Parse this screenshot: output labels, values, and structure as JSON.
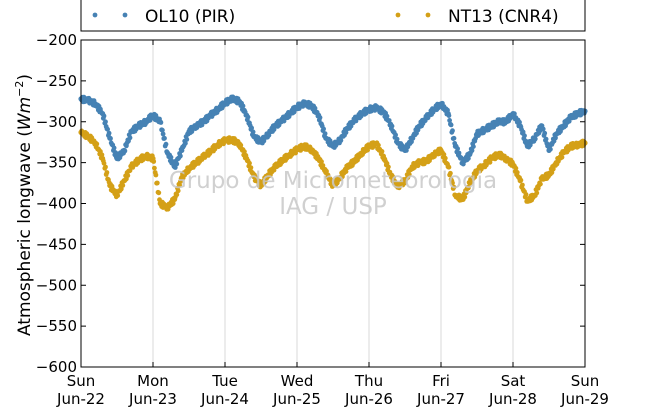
{
  "chart_data": {
    "type": "scatter",
    "ylabel_main": "Atmospheric longwave (",
    "ylabel_unit": "Wm",
    "ylabel_exp": "−2",
    "ylabel_close": ")",
    "ylim": [
      -600,
      -200
    ],
    "yticks": [
      -600,
      -550,
      -500,
      -450,
      -400,
      -350,
      -300,
      -250,
      -200
    ],
    "ytick_labels": [
      "−600",
      "−550",
      "−500",
      "−450",
      "−400",
      "−350",
      "−300",
      "−250",
      "−200"
    ],
    "xlim_days": [
      22,
      29
    ],
    "xticks": [
      {
        "day": 22,
        "weekday": "Sun",
        "date": "Jun-22"
      },
      {
        "day": 23,
        "weekday": "Mon",
        "date": "Jun-23"
      },
      {
        "day": 24,
        "weekday": "Tue",
        "date": "Jun-24"
      },
      {
        "day": 25,
        "weekday": "Wed",
        "date": "Jun-25"
      },
      {
        "day": 26,
        "weekday": "Thu",
        "date": "Jun-26"
      },
      {
        "day": 27,
        "weekday": "Fri",
        "date": "Jun-27"
      },
      {
        "day": 28,
        "weekday": "Sat",
        "date": "Jun-28"
      },
      {
        "day": 29,
        "weekday": "Sun",
        "date": "Jun-29"
      }
    ],
    "grid": "vertical",
    "legend": "top",
    "watermark": [
      "Grupo de Micrometeorologia",
      "IAG / USP"
    ],
    "series": [
      {
        "name": "OL10 (PIR)",
        "color": "#4682b4",
        "x": [
          22.0,
          22.1,
          22.2,
          22.3,
          22.4,
          22.5,
          22.6,
          22.7,
          22.8,
          22.9,
          23.0,
          23.1,
          23.2,
          23.3,
          23.4,
          23.5,
          23.6,
          23.7,
          23.8,
          23.9,
          24.0,
          24.1,
          24.2,
          24.3,
          24.4,
          24.5,
          24.6,
          24.7,
          24.8,
          24.9,
          25.0,
          25.1,
          25.2,
          25.3,
          25.4,
          25.5,
          25.6,
          25.7,
          25.8,
          25.9,
          26.0,
          26.1,
          26.2,
          26.3,
          26.4,
          26.5,
          26.6,
          26.7,
          26.8,
          26.9,
          27.0,
          27.1,
          27.2,
          27.3,
          27.4,
          27.5,
          27.6,
          27.7,
          27.8,
          27.9,
          28.0,
          28.1,
          28.2,
          28.3,
          28.4,
          28.5,
          28.6,
          28.7,
          28.8,
          28.9,
          29.0
        ],
        "y": [
          -272,
          -274,
          -278,
          -290,
          -320,
          -345,
          -335,
          -312,
          -305,
          -300,
          -292,
          -300,
          -338,
          -355,
          -335,
          -312,
          -305,
          -300,
          -292,
          -285,
          -277,
          -272,
          -275,
          -292,
          -318,
          -325,
          -315,
          -305,
          -298,
          -290,
          -282,
          -278,
          -280,
          -292,
          -320,
          -330,
          -322,
          -308,
          -298,
          -290,
          -285,
          -283,
          -288,
          -303,
          -326,
          -335,
          -320,
          -305,
          -295,
          -285,
          -278,
          -290,
          -330,
          -350,
          -340,
          -315,
          -310,
          -305,
          -300,
          -300,
          -290,
          -305,
          -330,
          -320,
          -305,
          -335,
          -315,
          -305,
          -295,
          -290,
          -287
        ]
      },
      {
        "name": "NT13 (CNR4)",
        "color": "#d4a017",
        "x": [
          22.0,
          22.1,
          22.2,
          22.3,
          22.4,
          22.5,
          22.6,
          22.7,
          22.8,
          22.9,
          23.0,
          23.1,
          23.2,
          23.3,
          23.4,
          23.5,
          23.6,
          23.7,
          23.8,
          23.9,
          24.0,
          24.1,
          24.2,
          24.3,
          24.4,
          24.5,
          24.6,
          24.7,
          24.8,
          24.9,
          25.0,
          25.1,
          25.2,
          25.3,
          25.4,
          25.5,
          25.6,
          25.7,
          25.8,
          25.9,
          26.0,
          26.1,
          26.2,
          26.3,
          26.4,
          26.5,
          26.6,
          26.7,
          26.8,
          26.9,
          27.0,
          27.1,
          27.2,
          27.3,
          27.4,
          27.5,
          27.6,
          27.7,
          27.8,
          27.9,
          28.0,
          28.1,
          28.2,
          28.3,
          28.4,
          28.5,
          28.6,
          28.7,
          28.8,
          28.9,
          29.0
        ],
        "y": [
          -313,
          -318,
          -326,
          -345,
          -378,
          -390,
          -372,
          -355,
          -347,
          -342,
          -345,
          -400,
          -405,
          -395,
          -368,
          -357,
          -350,
          -343,
          -336,
          -328,
          -323,
          -322,
          -327,
          -345,
          -367,
          -378,
          -365,
          -355,
          -347,
          -340,
          -334,
          -330,
          -334,
          -345,
          -362,
          -378,
          -368,
          -356,
          -348,
          -338,
          -330,
          -327,
          -342,
          -365,
          -380,
          -372,
          -355,
          -350,
          -348,
          -340,
          -335,
          -355,
          -390,
          -395,
          -375,
          -360,
          -353,
          -345,
          -340,
          -345,
          -352,
          -372,
          -397,
          -390,
          -370,
          -365,
          -350,
          -338,
          -330,
          -328,
          -326
        ]
      }
    ]
  }
}
